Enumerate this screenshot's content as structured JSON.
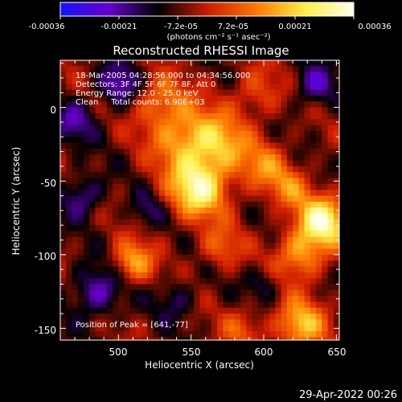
{
  "chart_data": {
    "type": "heatmap",
    "title": "Reconstructed RHESSI Image",
    "xlabel": "Heliocentric X (arcsec)",
    "ylabel": "Heliocentric Y (arcsec)",
    "xlim": [
      460,
      652
    ],
    "ylim": [
      -158,
      32
    ],
    "x_ticks": [
      500,
      550,
      600,
      650
    ],
    "y_ticks": [
      0,
      -50,
      -100,
      -150
    ],
    "colorbar": {
      "min": -0.00036,
      "max": 0.00036,
      "ticks": [
        "-0.00036",
        "-0.00021",
        "-7.2e-05",
        "7.2e-05",
        "0.00021",
        "0.00036"
      ],
      "unit_label": "(photons cm⁻² s⁻¹ asec⁻²)",
      "colors": [
        "#1414ff",
        "#6600cc",
        "#000000",
        "#cc1a00",
        "#ff7700",
        "#ffee44",
        "#ffffee"
      ]
    },
    "info_lines": [
      "18-Mar-2005 04:28:56.000 to 04:34:56.000",
      "Detectors: 3F 4F 5F 6F 7F 8F, Att 0",
      "Energy Range: 12.0 - 25.0 keV",
      "Clean     Total counts: 6.90E+03"
    ],
    "peak_label": "Position of Peak = [641,-77]",
    "peak_position": [
      641,
      -77
    ],
    "sources": [
      {
        "x": 555,
        "y": -55,
        "r": 14,
        "amp": 0.00034
      },
      {
        "x": 545,
        "y": -20,
        "r": 16,
        "amp": 0.00022
      },
      {
        "x": 570,
        "y": -25,
        "r": 14,
        "amp": 0.0002
      },
      {
        "x": 528,
        "y": 5,
        "r": 12,
        "amp": 0.00016
      },
      {
        "x": 595,
        "y": 10,
        "r": 12,
        "amp": 0.00012
      },
      {
        "x": 600,
        "y": -40,
        "r": 12,
        "amp": 0.00016
      },
      {
        "x": 641,
        "y": -77,
        "r": 12,
        "amp": 0.00036
      },
      {
        "x": 625,
        "y": -100,
        "r": 12,
        "amp": 0.00022
      },
      {
        "x": 618,
        "y": -55,
        "r": 10,
        "amp": 0.00014
      },
      {
        "x": 570,
        "y": -95,
        "r": 10,
        "amp": 0.00014
      },
      {
        "x": 510,
        "y": -105,
        "r": 10,
        "amp": 0.00022
      },
      {
        "x": 625,
        "y": -148,
        "r": 12,
        "amp": 0.00026
      },
      {
        "x": 585,
        "y": -150,
        "r": 10,
        "amp": 0.00012
      },
      {
        "x": 475,
        "y": -60,
        "r": 10,
        "amp": -0.00016
      },
      {
        "x": 485,
        "y": -125,
        "r": 12,
        "amp": -0.00018
      },
      {
        "x": 540,
        "y": -130,
        "r": 10,
        "amp": -0.0001
      },
      {
        "x": 500,
        "y": 15,
        "r": 10,
        "amp": -0.00018
      },
      {
        "x": 635,
        "y": 15,
        "r": 10,
        "amp": -0.00016
      },
      {
        "x": 600,
        "y": -120,
        "r": 8,
        "amp": -0.0001
      },
      {
        "x": 470,
        "y": -10,
        "r": 10,
        "amp": -0.00014
      },
      {
        "x": 520,
        "y": -70,
        "r": 8,
        "amp": -0.0001
      }
    ],
    "grid": false
  },
  "timestamp": "29-Apr-2022 00:26"
}
